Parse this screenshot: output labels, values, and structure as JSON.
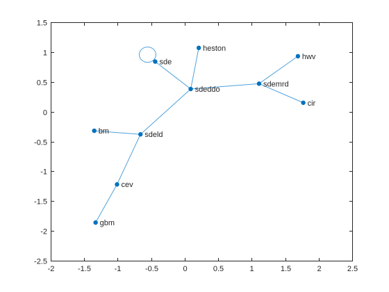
{
  "chart_data": {
    "type": "graph",
    "title": "",
    "xlabel": "",
    "ylabel": "",
    "xlim": [
      -2,
      2.5
    ],
    "ylim": [
      -2.5,
      1.5
    ],
    "xticks": [
      -2,
      -1.5,
      -1,
      -0.5,
      0,
      0.5,
      1,
      1.5,
      2,
      2.5
    ],
    "yticks": [
      -2.5,
      -2,
      -1.5,
      -1,
      -0.5,
      0,
      0.5,
      1,
      1.5
    ],
    "xtick_labels": [
      "-2",
      "-1.5",
      "-1",
      "-0.5",
      "0",
      "0.5",
      "1",
      "1.5",
      "2",
      "2.5"
    ],
    "ytick_labels": [
      "-2.5",
      "-2",
      "-1.5",
      "-1",
      "-0.5",
      "0",
      "0.5",
      "1",
      "1.5"
    ],
    "grid": false,
    "nodes": [
      {
        "name": "sde",
        "x": -0.44,
        "y": 0.84
      },
      {
        "name": "heston",
        "x": 0.21,
        "y": 1.07
      },
      {
        "name": "sdeddo",
        "x": 0.09,
        "y": 0.38
      },
      {
        "name": "sdemrd",
        "x": 1.11,
        "y": 0.47
      },
      {
        "name": "hwv",
        "x": 1.69,
        "y": 0.93
      },
      {
        "name": "cir",
        "x": 1.77,
        "y": 0.15
      },
      {
        "name": "bm",
        "x": -1.35,
        "y": -0.32
      },
      {
        "name": "sdeld",
        "x": -0.66,
        "y": -0.38
      },
      {
        "name": "cev",
        "x": -1.01,
        "y": -1.22
      },
      {
        "name": "gbm",
        "x": -1.33,
        "y": -1.86
      }
    ],
    "edges": [
      [
        "sde",
        "sde"
      ],
      [
        "heston",
        "sdeddo"
      ],
      [
        "sde",
        "sdeddo"
      ],
      [
        "sdeddo",
        "sdemrd"
      ],
      [
        "sdemrd",
        "hwv"
      ],
      [
        "sdemrd",
        "cir"
      ],
      [
        "sdeddo",
        "sdeld"
      ],
      [
        "bm",
        "sdeld"
      ],
      [
        "sdeld",
        "cev"
      ],
      [
        "cev",
        "gbm"
      ]
    ],
    "colors": {
      "edge": "#4fa1da",
      "node": "#0072bd",
      "axis": "#262626",
      "background": "#ffffff"
    }
  }
}
